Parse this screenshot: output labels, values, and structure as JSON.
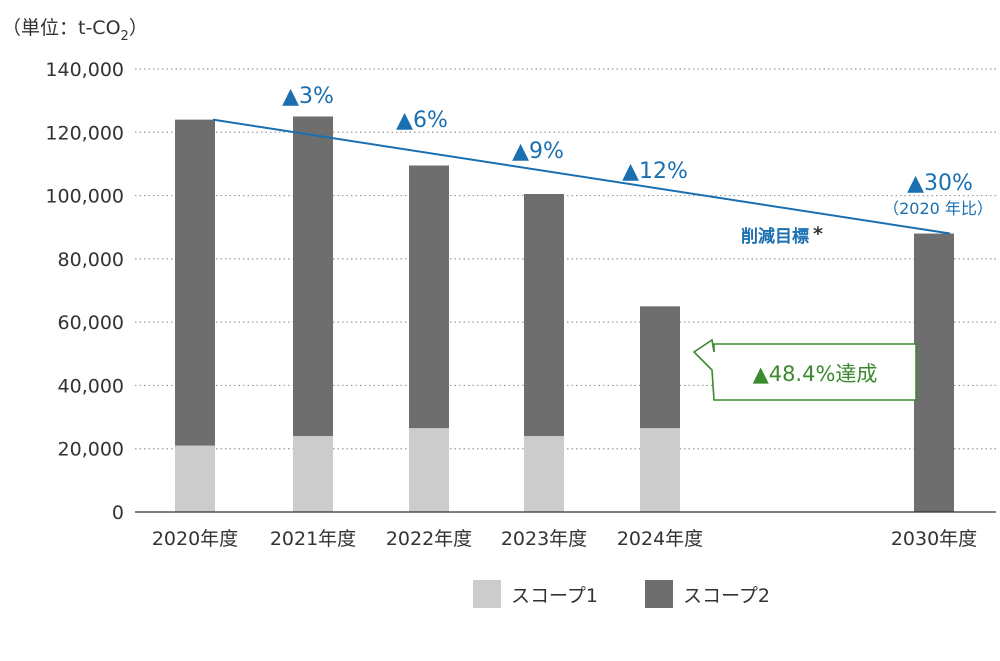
{
  "chart_data": {
    "type": "bar",
    "stacked": true,
    "unit_label": "（単位：t-CO",
    "unit_sub": "2",
    "unit_close": "）",
    "categories": [
      "2020年度",
      "2021年度",
      "2022年度",
      "2023年度",
      "2024年度",
      "2030年度"
    ],
    "series": [
      {
        "name": "スコープ1",
        "color": "#cccccc",
        "values": [
          21000,
          24000,
          26500,
          24000,
          26500,
          null
        ]
      },
      {
        "name": "スコープ2",
        "color": "#6e6e6e",
        "values": [
          103000,
          101000,
          83000,
          76500,
          38500,
          88000
        ]
      }
    ],
    "ylim": [
      0,
      140000
    ],
    "yticks": [
      0,
      20000,
      40000,
      60000,
      80000,
      100000,
      120000,
      140000
    ],
    "ytick_labels": [
      "0",
      "20,000",
      "40,000",
      "60,000",
      "80,000",
      "100,000",
      "120,000",
      "140,000"
    ],
    "grid": true,
    "grid_style": "dotted",
    "legend_position": "bottom",
    "target_line": {
      "label": "削減目標",
      "label_mark": "*",
      "color": "#1a6fb0",
      "from": {
        "category": "2020年度",
        "value": 124000
      },
      "to": {
        "category": "2030年度",
        "value": 88000
      }
    },
    "reduction_labels": [
      {
        "category": "2021年度",
        "text": "▲3%"
      },
      {
        "category": "2022年度",
        "text": "▲6%"
      },
      {
        "category": "2023年度",
        "text": "▲9%"
      },
      {
        "category": "2024年度",
        "text": "▲12%"
      },
      {
        "category": "2030年度",
        "text": "▲30%",
        "note": "（2020 年比）"
      }
    ],
    "callout": {
      "category": "2024年度",
      "text": "▲48.4%達成",
      "color": "#3b8a2e"
    }
  }
}
